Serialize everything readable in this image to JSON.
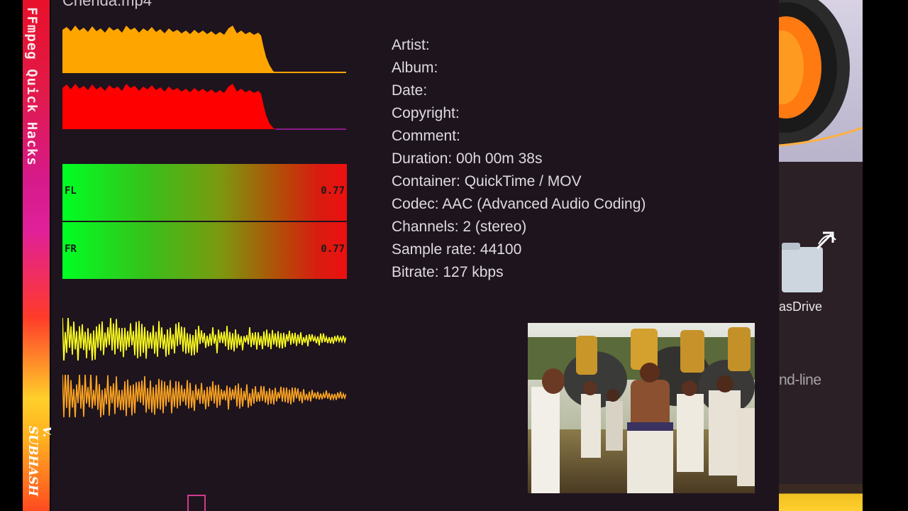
{
  "spine": {
    "title": "FFmpeg Quick Hacks",
    "author": "V. SUBHASH"
  },
  "player": {
    "title": "Chenda.mp4",
    "meters": [
      {
        "channel": "FL",
        "value": "0.77"
      },
      {
        "channel": "FR",
        "value": "0.77"
      }
    ],
    "info": {
      "artist": "Artist:",
      "album": "Album:",
      "date": "Date:",
      "copyright": "Copyright:",
      "comment": "Comment:",
      "duration": "Duration: 00h 00m 38s",
      "container": "Container: QuickTime / MOV",
      "codec": "Codec: AAC (Advanced Audio Coding)",
      "channels": "Channels: 2 (stereo)",
      "sample_rate": "Sample rate: 44100",
      "bitrate": "Bitrate: 127 kbps"
    },
    "colors": {
      "background": "#1e141e",
      "wave_top": "#ffa500",
      "wave_bottom": "#ff0000",
      "osc_top": "#ffff20",
      "osc_bottom": "#ffa520"
    }
  },
  "desktop": {
    "folder_label": "asDrive",
    "cmd_label": "nd-line"
  }
}
